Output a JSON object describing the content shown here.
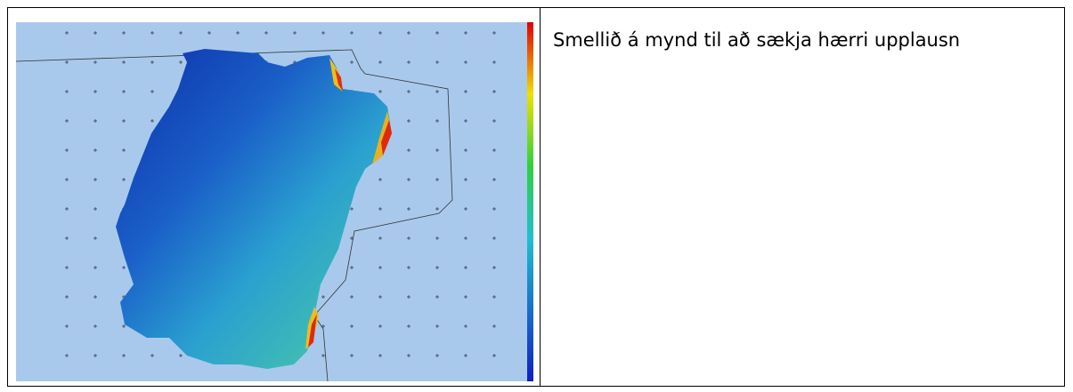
{
  "table": {
    "rows": [
      [
        {
          "text": "Smellið á mynd til að sækja hærri upplausn"
        }
      ]
    ]
  }
}
